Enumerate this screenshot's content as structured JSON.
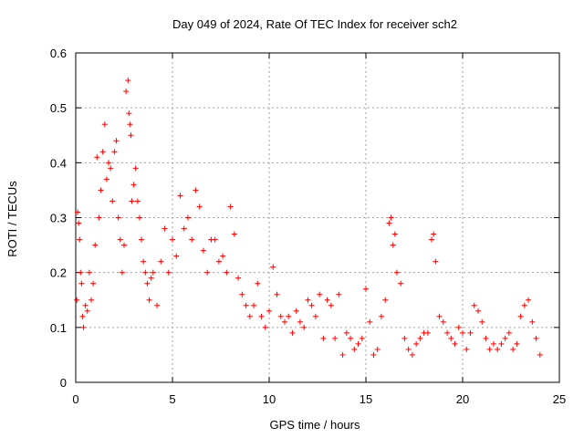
{
  "chart_data": {
    "type": "scatter",
    "title": "Day 049 of 2024, Rate Of TEC Index for receiver sch2",
    "xlabel": "GPS time / hours",
    "ylabel": "ROTI / TECUs",
    "xlim": [
      0,
      25
    ],
    "ylim": [
      0,
      0.6
    ],
    "xticks": [
      "0",
      "5",
      "10",
      "15",
      "20",
      "25"
    ],
    "yticks": [
      "0",
      "0.1",
      "0.2",
      "0.3",
      "0.4",
      "0.5",
      "0.6"
    ],
    "grid": true,
    "marker": "+",
    "color": "#ff0000",
    "series": [
      {
        "x": [
          0.05,
          0.1,
          0.15,
          0.2,
          0.25,
          0.3,
          0.35,
          0.4,
          0.5,
          0.6,
          0.7,
          0.8,
          0.9,
          1.0,
          1.1,
          1.2,
          1.3,
          1.4,
          1.5,
          1.6,
          1.7,
          1.8,
          1.9,
          2.0,
          2.1,
          2.2,
          2.3,
          2.4,
          2.5,
          2.6,
          2.7,
          2.75,
          2.8,
          2.85,
          2.9,
          3.0,
          3.1,
          3.2,
          3.3,
          3.4,
          3.5,
          3.6,
          3.7,
          3.8,
          3.9,
          4.0,
          4.2,
          4.4,
          4.6,
          4.8,
          5.0,
          5.2,
          5.4,
          5.6,
          5.8,
          6.0,
          6.2,
          6.4,
          6.6,
          6.8,
          7.0,
          7.2,
          7.4,
          7.6,
          7.8,
          8.0,
          8.2,
          8.4,
          8.6,
          8.8,
          9.0,
          9.2,
          9.4,
          9.6,
          9.8,
          10.0,
          10.2,
          10.4,
          10.6,
          10.8,
          11.0,
          11.2,
          11.4,
          11.6,
          11.8,
          12.0,
          12.2,
          12.4,
          12.6,
          12.8,
          13.0,
          13.2,
          13.4,
          13.6,
          13.8,
          14.0,
          14.2,
          14.4,
          14.6,
          14.8,
          15.0,
          15.2,
          15.4,
          15.6,
          15.8,
          16.0,
          16.2,
          16.3,
          16.4,
          16.5,
          16.6,
          16.8,
          17.0,
          17.2,
          17.4,
          17.6,
          17.8,
          18.0,
          18.2,
          18.4,
          18.5,
          18.6,
          18.8,
          19.0,
          19.2,
          19.4,
          19.6,
          19.8,
          20.0,
          20.2,
          20.4,
          20.6,
          20.8,
          21.0,
          21.2,
          21.4,
          21.6,
          21.8,
          22.0,
          22.2,
          22.4,
          22.6,
          22.8,
          23.0,
          23.2,
          23.4,
          23.6,
          23.8,
          24.0
        ],
        "y": [
          0.15,
          0.31,
          0.29,
          0.26,
          0.2,
          0.18,
          0.12,
          0.1,
          0.14,
          0.13,
          0.2,
          0.15,
          0.18,
          0.25,
          0.41,
          0.3,
          0.35,
          0.42,
          0.47,
          0.37,
          0.4,
          0.39,
          0.33,
          0.42,
          0.44,
          0.3,
          0.26,
          0.2,
          0.25,
          0.53,
          0.55,
          0.49,
          0.47,
          0.45,
          0.33,
          0.36,
          0.39,
          0.33,
          0.3,
          0.26,
          0.22,
          0.2,
          0.18,
          0.15,
          0.19,
          0.2,
          0.14,
          0.22,
          0.28,
          0.2,
          0.26,
          0.23,
          0.34,
          0.28,
          0.3,
          0.26,
          0.35,
          0.32,
          0.24,
          0.2,
          0.26,
          0.26,
          0.22,
          0.23,
          0.2,
          0.32,
          0.27,
          0.19,
          0.16,
          0.14,
          0.12,
          0.14,
          0.18,
          0.12,
          0.1,
          0.13,
          0.21,
          0.16,
          0.12,
          0.11,
          0.12,
          0.09,
          0.13,
          0.11,
          0.1,
          0.15,
          0.14,
          0.12,
          0.16,
          0.08,
          0.15,
          0.14,
          0.08,
          0.16,
          0.05,
          0.09,
          0.08,
          0.06,
          0.07,
          0.08,
          0.17,
          0.11,
          0.05,
          0.06,
          0.12,
          0.15,
          0.29,
          0.3,
          0.25,
          0.27,
          0.2,
          0.18,
          0.08,
          0.06,
          0.05,
          0.07,
          0.08,
          0.09,
          0.09,
          0.26,
          0.27,
          0.22,
          0.12,
          0.11,
          0.09,
          0.08,
          0.07,
          0.1,
          0.09,
          0.06,
          0.09,
          0.14,
          0.13,
          0.11,
          0.08,
          0.06,
          0.07,
          0.06,
          0.07,
          0.08,
          0.09,
          0.06,
          0.07,
          0.12,
          0.14,
          0.15,
          0.11,
          0.08,
          0.05
        ]
      }
    ]
  }
}
